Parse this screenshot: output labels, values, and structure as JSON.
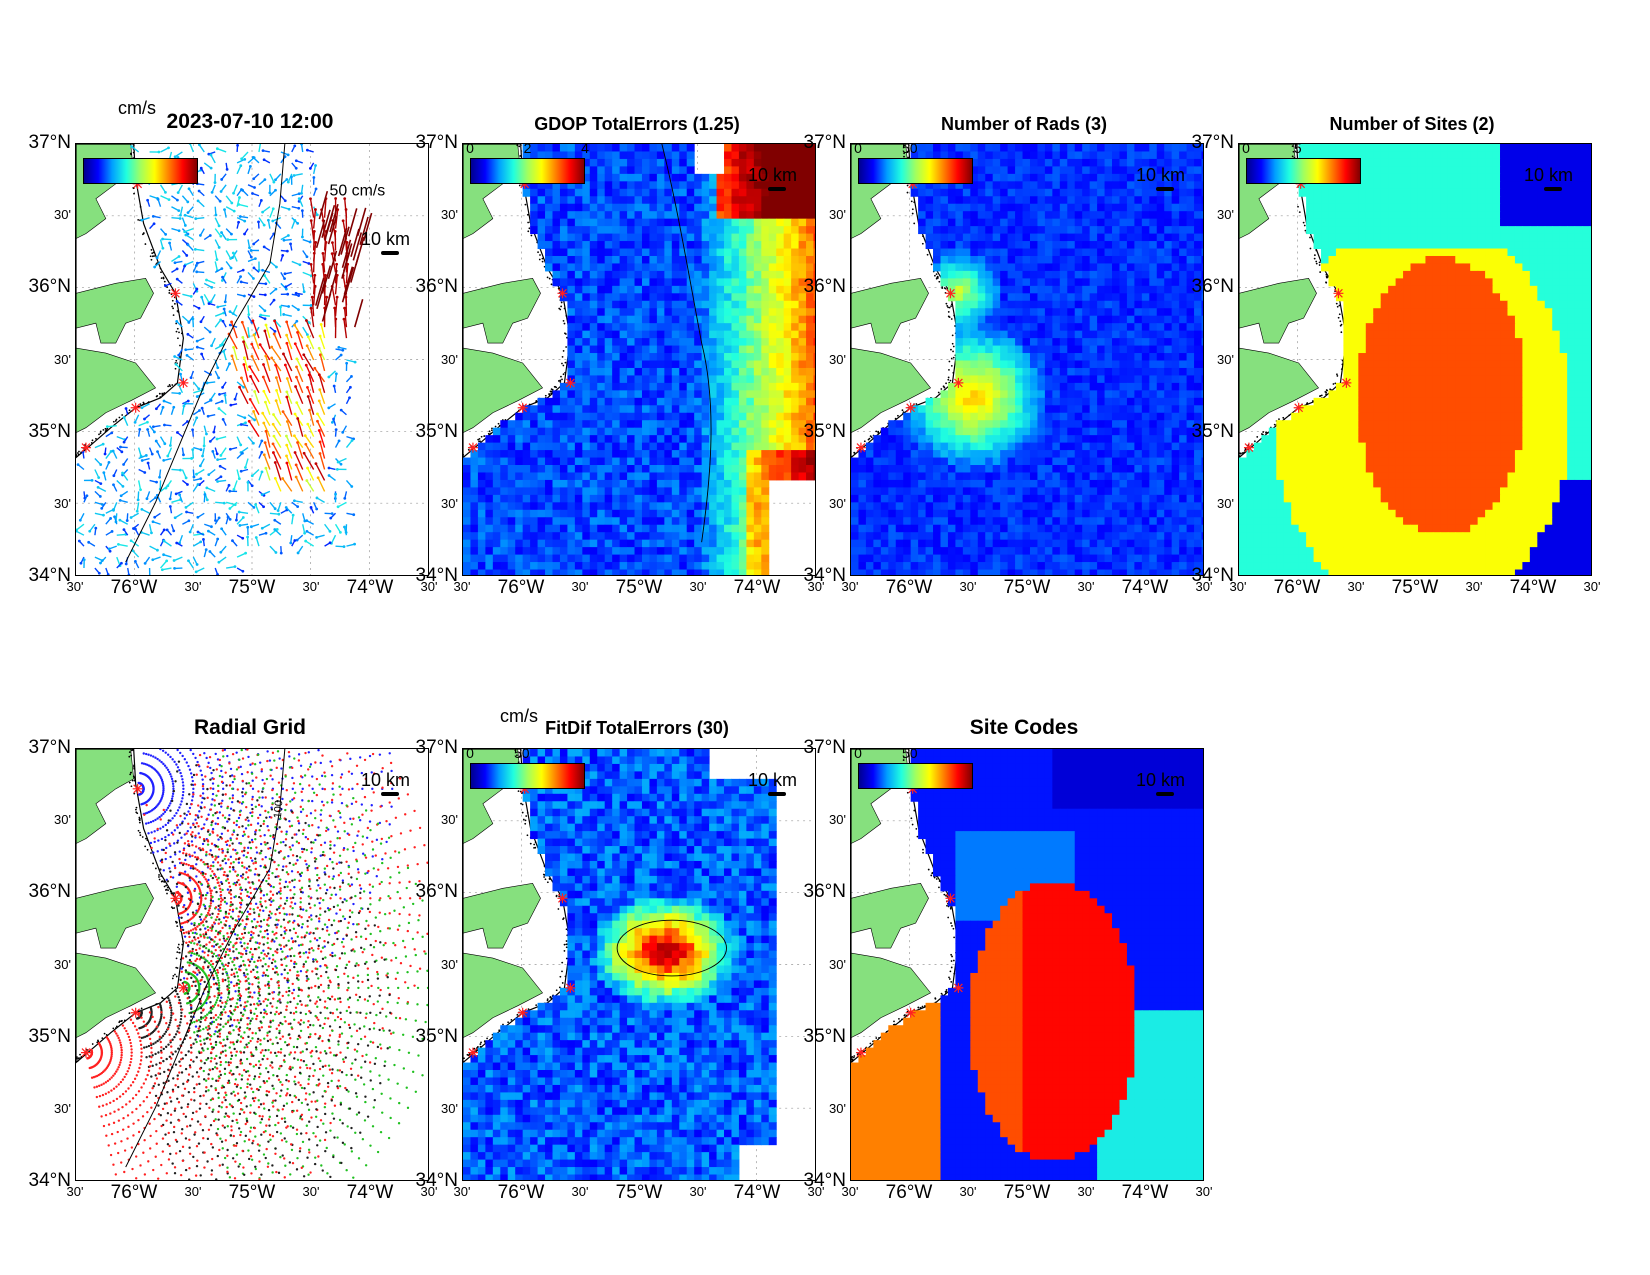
{
  "colormap": [
    "#00008f",
    "#0000ff",
    "#00a0ff",
    "#20ffdf",
    "#a0ff60",
    "#ffff00",
    "#ff8000",
    "#ff0000",
    "#800000"
  ],
  "land_color": "#86e07e",
  "axis_labels": {
    "y": [
      "37°N",
      "30'",
      "36°N",
      "30'",
      "35°N",
      "30'",
      "34°N"
    ],
    "x": [
      "30'",
      "76°W",
      "30'",
      "75°W",
      "30'",
      "74°W",
      "30'"
    ]
  },
  "panels": {
    "velocity": {
      "title": "2023-07-10 12:00",
      "unit": "cm/s",
      "scale_vector": "50 cm/s",
      "scale": "10 km",
      "cbar_ticks": []
    },
    "gdop": {
      "title": "GDOP TotalErrors (1.25)",
      "scale": "10 km",
      "cbar_ticks": [
        "0",
        "2",
        "4"
      ],
      "contour": "1.25"
    },
    "rads": {
      "title": "Number of Rads (3)",
      "scale": "10 km",
      "cbar_ticks": [
        "0",
        "50"
      ]
    },
    "sites": {
      "title": "Number of Sites (2)",
      "scale": "10 km",
      "cbar_ticks": [
        "0",
        "5"
      ],
      "contour": "2"
    },
    "radial": {
      "title": "Radial Grid",
      "scale": "10 km",
      "contour": "100"
    },
    "fitdif": {
      "title": "FitDif TotalErrors (30)",
      "unit": "cm/s",
      "scale": "10 km",
      "cbar_ticks": [
        "0",
        "50"
      ],
      "contour": "30"
    },
    "sitecodes": {
      "title": "Site Codes",
      "scale": "10 km",
      "cbar_ticks": [
        "0",
        "50"
      ]
    }
  }
}
